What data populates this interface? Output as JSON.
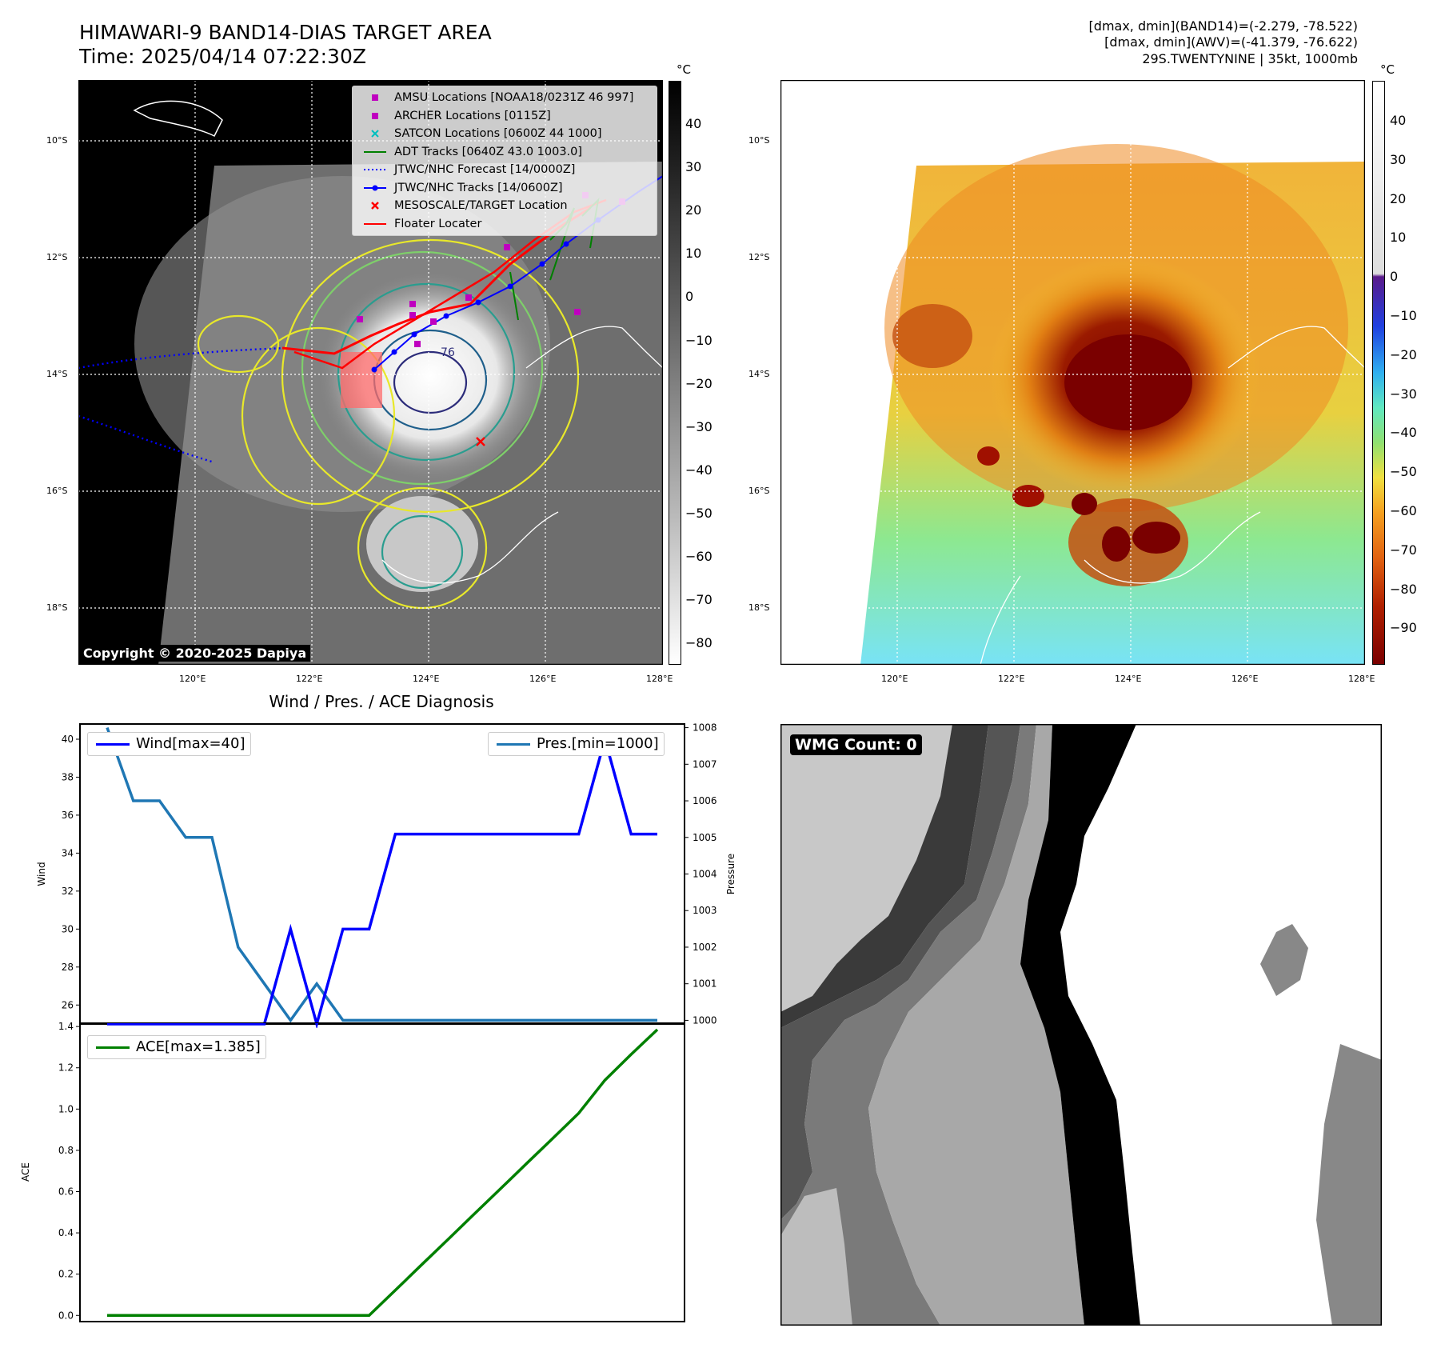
{
  "header": {
    "title_line1": "HIMAWARI-9 BAND14-DIAS TARGET AREA",
    "title_line2": "Time: 2025/04/14 07:22:30Z",
    "info_line1": "[dmax, dmin](BAND14)=(-2.279, -78.522)",
    "info_line2": "[dmax, dmin](AWV)=(-41.379, -76.622)",
    "info_line3": "29S.TWENTYNINE | 35kt, 1000mb"
  },
  "map": {
    "lat_labels": [
      "10°S",
      "12°S",
      "14°S",
      "16°S",
      "18°S"
    ],
    "lon_labels": [
      "120°E",
      "122°E",
      "124°E",
      "126°E",
      "128°E"
    ],
    "contour_label": "-76",
    "copyright": "Copyright © 2020-2025 Dapiya",
    "legend": [
      {
        "label": "AMSU Locations [NOAA18/0231Z 46 997]",
        "color": "#bf00bf",
        "marker": "square"
      },
      {
        "label": "ARCHER Locations [0115Z]",
        "color": "#bf00bf",
        "marker": "square"
      },
      {
        "label": "SATCON Locations [0600Z 44 1000]",
        "color": "#00bfbf",
        "marker": "x"
      },
      {
        "label": "ADT Tracks [0640Z 43.0 1003.0]",
        "color": "#008000",
        "marker": "line"
      },
      {
        "label": "JTWC/NHC Forecast [14/0000Z]",
        "color": "#0000ff",
        "marker": "dotted"
      },
      {
        "label": "JTWC/NHC Tracks [14/0600Z]",
        "color": "#0000ff",
        "marker": "line-dot"
      },
      {
        "label": "MESOSCALE/TARGET Location",
        "color": "#ff0000",
        "marker": "x"
      },
      {
        "label": "Floater Locater",
        "color": "#ff0000",
        "marker": "line"
      }
    ]
  },
  "colorbar_left": {
    "unit": "°C",
    "ticks": [
      "40",
      "30",
      "20",
      "10",
      "0",
      "−10",
      "−20",
      "−30",
      "−40",
      "−50",
      "−60",
      "−70",
      "−80"
    ]
  },
  "colorbar_right": {
    "unit": "°C",
    "ticks": [
      "40",
      "30",
      "20",
      "10",
      "0",
      "−10",
      "−20",
      "−30",
      "−40",
      "−50",
      "−60",
      "−70",
      "−80",
      "−90"
    ]
  },
  "chart_data": [
    {
      "type": "line",
      "title": "Wind / Pres. / ACE Diagnosis",
      "ylabel": "Wind",
      "y2label": "Pressure",
      "ylim": [
        25,
        40.8
      ],
      "y2lim": [
        999.9,
        1008.1
      ],
      "yticks": [
        "40",
        "38",
        "36",
        "34",
        "32",
        "30",
        "28",
        "26"
      ],
      "y2ticks": [
        "1008",
        "1007",
        "1006",
        "1005",
        "1004",
        "1003",
        "1002",
        "1001",
        "1000"
      ],
      "series": [
        {
          "name": "Wind[max=40]",
          "color": "#0000ff",
          "values": [
            25,
            25,
            25,
            25,
            25,
            25,
            25,
            30,
            25,
            30,
            30,
            35,
            35,
            35,
            35,
            35,
            35,
            35,
            35,
            40,
            35,
            35
          ]
        },
        {
          "name": "Pres.[min=1000]",
          "color": "#1f77b4",
          "values": [
            1008,
            1006,
            1006,
            1005,
            1005,
            1002,
            1001,
            1000,
            1001,
            1000,
            1000,
            1000,
            1000,
            1000,
            1000,
            1000,
            1000,
            1000,
            1000,
            1000,
            1000,
            1000
          ]
        }
      ]
    },
    {
      "type": "line",
      "ylabel": "ACE",
      "ylim": [
        -0.03,
        1.42
      ],
      "yticks": [
        "1.4",
        "1.2",
        "1.0",
        "0.8",
        "0.6",
        "0.4",
        "0.2",
        "0.0"
      ],
      "series": [
        {
          "name": "ACE[max=1.385]",
          "color": "#008000",
          "values": [
            0,
            0,
            0,
            0,
            0,
            0,
            0,
            0,
            0,
            0,
            0,
            0.122,
            0.245,
            0.367,
            0.49,
            0.612,
            0.735,
            0.857,
            0.98,
            1.14,
            1.265,
            1.385
          ]
        }
      ]
    }
  ],
  "wmg": {
    "label": "WMG Count: 0"
  }
}
